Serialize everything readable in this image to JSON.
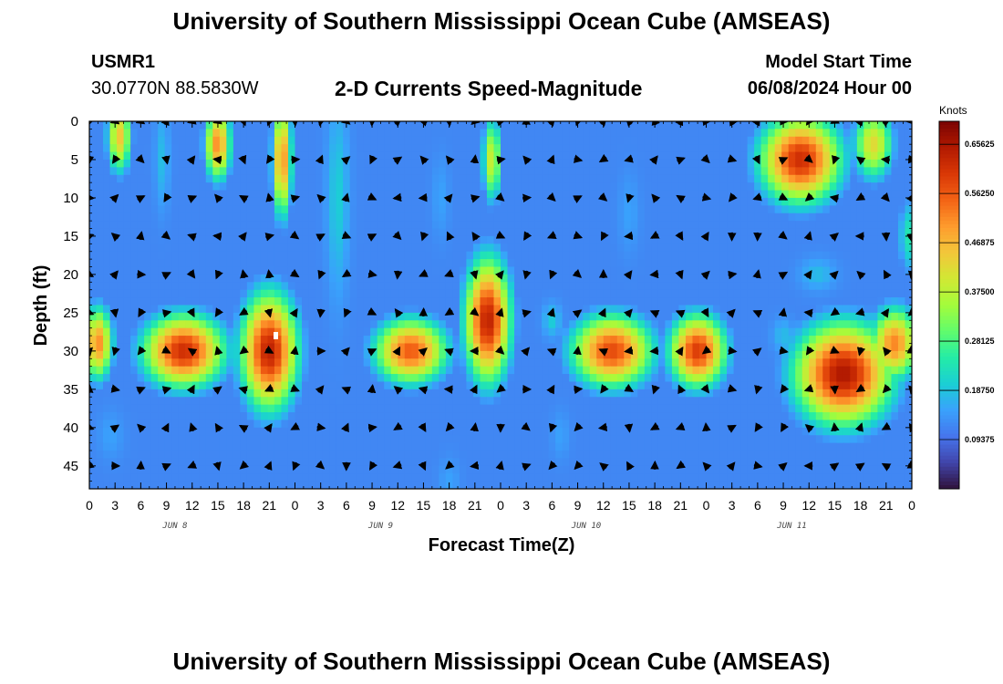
{
  "header": {
    "title": "University of Southern Mississippi Ocean Cube (AMSEAS)",
    "station": "USMR1",
    "location": "30.0770N  88.5830W",
    "subtitle": "2-D Currents Speed-Magnitude",
    "model_start_label": "Model Start Time",
    "model_start_value": "06/08/2024 Hour 00"
  },
  "footer": {
    "title": "University of Southern Mississippi Ocean Cube (AMSEAS)"
  },
  "chart_data": {
    "type": "heatmap",
    "title": "2-D Currents Speed-Magnitude",
    "xlabel": "Forecast Time(Z)",
    "ylabel": "Depth (ft)",
    "x_hours_range": [
      0,
      96
    ],
    "y_range": [
      0,
      48
    ],
    "x_tick_labels": [
      "0",
      "3",
      "6",
      "9",
      "12",
      "15",
      "18",
      "21",
      "0",
      "3",
      "6",
      "9",
      "12",
      "15",
      "18",
      "21",
      "0",
      "3",
      "6",
      "9",
      "12",
      "15",
      "18",
      "21",
      "0",
      "3",
      "6",
      "9",
      "12",
      "15",
      "18",
      "21",
      "0"
    ],
    "y_tick_labels": [
      "0",
      "5",
      "10",
      "15",
      "20",
      "25",
      "30",
      "35",
      "40",
      "45"
    ],
    "y_tick_values": [
      0,
      5,
      10,
      15,
      20,
      25,
      30,
      35,
      40,
      45
    ],
    "day_labels": [
      {
        "label": "JUN 8",
        "hour": 10
      },
      {
        "label": "JUN 9",
        "hour": 34
      },
      {
        "label": "JUN 10",
        "hour": 58
      },
      {
        "label": "JUN 11",
        "hour": 82
      }
    ],
    "colorbar": {
      "unit": "Knots",
      "min": 0,
      "max": 0.7,
      "tick_values": [
        0.65625,
        0.5625,
        0.46875,
        0.375,
        0.28125,
        0.1875,
        0.09375
      ],
      "tick_labels": [
        "0.65625",
        "0.56250",
        "0.46875",
        "0.37500",
        "0.28125",
        "0.18750",
        "0.09375"
      ]
    },
    "colormap": [
      "#30123b",
      "#4145ab",
      "#4675ed",
      "#39a2fc",
      "#1bcfd4",
      "#24eca6",
      "#61fc6c",
      "#a4fc3b",
      "#d1e834",
      "#f3c63a",
      "#fe9b2d",
      "#f36315",
      "#d93806",
      "#b11901",
      "#7a0402"
    ],
    "speed_blobs": [
      {
        "t": 1,
        "d": 29,
        "st": 1.8,
        "sd": 5,
        "v": 0.55
      },
      {
        "t": 11,
        "d": 30,
        "st": 5,
        "sd": 5,
        "v": 0.66
      },
      {
        "t": 21,
        "d": 30,
        "st": 3.5,
        "sd": 8,
        "v": 0.68
      },
      {
        "t": 37.5,
        "d": 30,
        "st": 4.5,
        "sd": 4.5,
        "v": 0.6
      },
      {
        "t": 46.5,
        "d": 26,
        "st": 2.8,
        "sd": 8.5,
        "v": 0.68
      },
      {
        "t": 61,
        "d": 30,
        "st": 5,
        "sd": 5,
        "v": 0.62
      },
      {
        "t": 71,
        "d": 30,
        "st": 3.5,
        "sd": 5,
        "v": 0.64
      },
      {
        "t": 88,
        "d": 33,
        "st": 6,
        "sd": 7,
        "v": 0.7
      },
      {
        "t": 94,
        "d": 29,
        "st": 3,
        "sd": 5,
        "v": 0.55
      },
      {
        "t": 3.5,
        "d": 2,
        "st": 1.5,
        "sd": 5,
        "v": 0.48
      },
      {
        "t": 15,
        "d": 3,
        "st": 1.6,
        "sd": 5,
        "v": 0.55
      },
      {
        "t": 22.5,
        "d": 5,
        "st": 1.2,
        "sd": 8,
        "v": 0.55
      },
      {
        "t": 83,
        "d": 5,
        "st": 5,
        "sd": 6,
        "v": 0.66
      },
      {
        "t": 91.5,
        "d": 3,
        "st": 2.5,
        "sd": 5,
        "v": 0.45
      },
      {
        "t": 47,
        "d": 5,
        "st": 1.2,
        "sd": 6,
        "v": 0.42
      },
      {
        "t": 95.5,
        "d": 15,
        "st": 1.2,
        "sd": 6,
        "v": 0.25
      }
    ],
    "slow_blobs": [
      {
        "t": 8.5,
        "d": 5,
        "st": 0.8,
        "sd": 6,
        "v": 0.18
      },
      {
        "t": 29,
        "d": 10,
        "st": 1.2,
        "sd": 12,
        "v": 0.2
      },
      {
        "t": 41,
        "d": 10,
        "st": 1.0,
        "sd": 5,
        "v": 0.15
      },
      {
        "t": 63,
        "d": 12,
        "st": 1.2,
        "sd": 5,
        "v": 0.15
      },
      {
        "t": 2.5,
        "d": 41,
        "st": 1.5,
        "sd": 3,
        "v": 0.15
      },
      {
        "t": 42,
        "d": 47,
        "st": 1.2,
        "sd": 3,
        "v": 0.15
      },
      {
        "t": 55,
        "d": 41,
        "st": 1.0,
        "sd": 3,
        "v": 0.15
      },
      {
        "t": 81,
        "d": 28,
        "st": 1.2,
        "sd": 2,
        "v": 0.18
      },
      {
        "t": 85,
        "d": 20,
        "st": 2,
        "sd": 2,
        "v": 0.18
      },
      {
        "t": 54,
        "d": 26,
        "st": 1.0,
        "sd": 2,
        "v": 0.2
      }
    ],
    "current_arrows_cols": 33,
    "current_arrows_rows": 10
  }
}
